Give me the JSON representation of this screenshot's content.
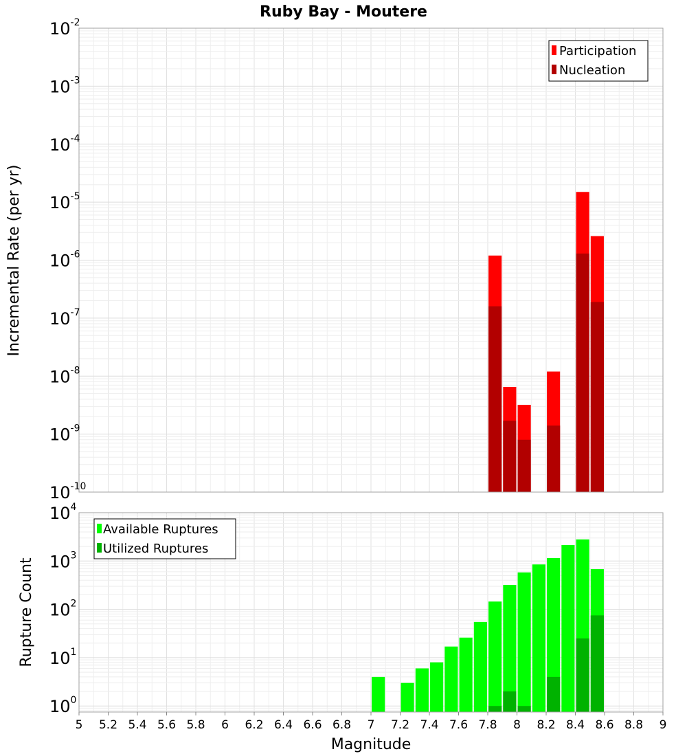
{
  "title": "Ruby Bay - Moutere",
  "chart_data": [
    {
      "type": "bar",
      "ylabel": "Incremental Rate (per yr)",
      "yscale": "log",
      "ylim": [
        1e-10,
        0.01
      ],
      "xlim": [
        5,
        9
      ],
      "grid": true,
      "legend_position": "top-right",
      "bar_width": 0.09,
      "x": [
        7.85,
        7.95,
        8.05,
        8.25,
        8.45,
        8.55
      ],
      "series": [
        {
          "name": "Participation",
          "color": "#ff0000",
          "values": [
            1.2e-06,
            6.5e-09,
            3.2e-09,
            1.2e-08,
            1.5e-05,
            2.6e-06
          ]
        },
        {
          "name": "Nucleation",
          "color": "#b20000",
          "values": [
            1.6e-07,
            1.7e-09,
            8e-10,
            1.4e-09,
            1.3e-06,
            1.9e-07
          ]
        }
      ]
    },
    {
      "type": "bar",
      "ylabel": "Rupture Count",
      "xlabel": "Magnitude",
      "yscale": "log",
      "ylim": [
        0.75,
        10000
      ],
      "xlim": [
        5,
        9
      ],
      "grid": true,
      "legend_position": "top-left",
      "bar_width": 0.09,
      "x": [
        7.05,
        7.25,
        7.35,
        7.45,
        7.55,
        7.65,
        7.75,
        7.85,
        7.95,
        8.05,
        8.15,
        8.25,
        8.35,
        8.45,
        8.55
      ],
      "series": [
        {
          "name": "Available Ruptures",
          "color": "#00ff00",
          "values": [
            4,
            3,
            6,
            8,
            17,
            26,
            55,
            145,
            320,
            580,
            850,
            1150,
            2150,
            2800,
            680
          ]
        },
        {
          "name": "Utilized Ruptures",
          "color": "#00b200",
          "values": [
            0,
            0,
            0,
            0,
            0,
            0,
            0,
            1,
            2,
            1,
            0,
            4,
            0,
            25,
            75
          ]
        }
      ]
    }
  ],
  "x_ticks": [
    "5",
    "5.2",
    "5.4",
    "5.6",
    "5.8",
    "6",
    "6.2",
    "6.4",
    "6.6",
    "6.8",
    "7",
    "7.2",
    "7.4",
    "7.6",
    "7.8",
    "8",
    "8.2",
    "8.4",
    "8.6",
    "8.8",
    "9"
  ],
  "top_y_ticks": [
    {
      "base": "10",
      "exp": "-2",
      "value": 0.01
    },
    {
      "base": "10",
      "exp": "-3",
      "value": 0.001
    },
    {
      "base": "10",
      "exp": "-4",
      "value": 0.0001
    },
    {
      "base": "10",
      "exp": "-5",
      "value": 1e-05
    },
    {
      "base": "10",
      "exp": "-6",
      "value": 1e-06
    },
    {
      "base": "10",
      "exp": "-7",
      "value": 1e-07
    },
    {
      "base": "10",
      "exp": "-8",
      "value": 1e-08
    },
    {
      "base": "10",
      "exp": "-9",
      "value": 1e-09
    },
    {
      "base": "10",
      "exp": "-10",
      "value": 1e-10
    }
  ],
  "bottom_y_ticks": [
    {
      "base": "10",
      "exp": "4",
      "value": 10000
    },
    {
      "base": "10",
      "exp": "3",
      "value": 1000
    },
    {
      "base": "10",
      "exp": "2",
      "value": 100
    },
    {
      "base": "10",
      "exp": "1",
      "value": 10
    },
    {
      "base": "10",
      "exp": "0",
      "value": 1
    }
  ]
}
